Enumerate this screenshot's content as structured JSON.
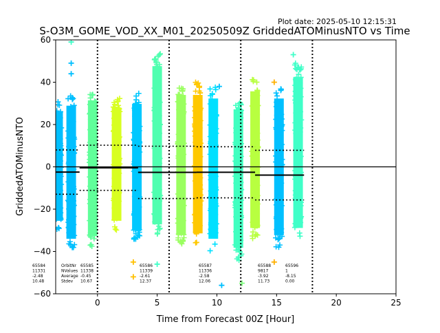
{
  "plot_date": "Plot date: 2025-05-10 12:15:31",
  "chart_data": {
    "type": "scatter",
    "title": "S-O3M_GOME_VOD_XX_M01_20250509Z GriddedATOMinusNTO vs Time",
    "xlabel": "Time from Forecast 00Z [Hour]",
    "ylabel": "GriddedATOMinusNTO",
    "xlim": [
      -3.5,
      25
    ],
    "ylim": [
      -60,
      60
    ],
    "xticks": [
      0,
      5,
      10,
      15,
      20,
      25
    ],
    "yticks": [
      -60,
      -40,
      -20,
      0,
      20,
      40,
      60
    ],
    "grid": false,
    "marker": "+",
    "orbit_boundaries": [
      0,
      6,
      12,
      18
    ],
    "zero_line": 0,
    "stat_labels": [
      "OrbitNr",
      "NValues",
      "Average",
      "Stdev"
    ],
    "orbits": [
      {
        "orbit": "65584",
        "nvalues": "11331",
        "average": "-2.48",
        "stdev": "10.48",
        "average_value": -2.48,
        "stdev_value": 10.48,
        "x_range": [
          -3.5,
          -1.5
        ]
      },
      {
        "orbit": "65585",
        "nvalues": "11338",
        "average": "-0.45",
        "stdev": "10.67",
        "average_value": -0.45,
        "stdev_value": 10.67,
        "x_range": [
          -1.5,
          3.4
        ]
      },
      {
        "orbit": "65586",
        "nvalues": "11339",
        "average": "-2.61",
        "stdev": "12.37",
        "average_value": -2.61,
        "stdev_value": 12.37,
        "x_range": [
          3.4,
          8.3
        ]
      },
      {
        "orbit": "65587",
        "nvalues": "11336",
        "average": "-2.58",
        "stdev": "12.06",
        "average_value": -2.58,
        "stdev_value": 12.06,
        "x_range": [
          8.3,
          13.2
        ]
      },
      {
        "orbit": "65588",
        "nvalues": "9817",
        "average": "-3.92",
        "stdev": "11.73",
        "average_value": -3.92,
        "stdev_value": 11.73,
        "x_range": [
          13.2,
          17.3
        ]
      },
      {
        "orbit": "65596",
        "nvalues": "1",
        "average": "-8.15",
        "stdev": "0.00",
        "average_value": -8.15,
        "stdev_value": 0.0,
        "x_range": []
      }
    ],
    "clusters": [
      {
        "x": -3.3,
        "ymin": -30,
        "ymax": 31,
        "color": "#00bfff"
      },
      {
        "x": -2.2,
        "ymin": -40,
        "ymax": 34,
        "color": "#00bfff"
      },
      {
        "x": -0.4,
        "ymin": -38,
        "ymax": 37,
        "color": "#60ff9a"
      },
      {
        "x": 1.6,
        "ymin": -30,
        "ymax": 33,
        "color": "#d8ff20"
      },
      {
        "x": 3.3,
        "ymin": -35,
        "ymax": 35,
        "color": "#00c8ff"
      },
      {
        "x": 5.0,
        "ymin": -32,
        "ymax": 56,
        "color": "#50ffb0"
      },
      {
        "x": 7.0,
        "ymin": -38,
        "ymax": 40,
        "color": "#9aff60"
      },
      {
        "x": 8.4,
        "ymin": -37,
        "ymax": 40,
        "color": "#ffc800"
      },
      {
        "x": 9.7,
        "ymin": -40,
        "ymax": 38,
        "color": "#00e0ff"
      },
      {
        "x": 11.8,
        "ymin": -45,
        "ymax": 32,
        "color": "#40ffc0"
      },
      {
        "x": 13.2,
        "ymin": -34,
        "ymax": 42,
        "color": "#b8ff40"
      },
      {
        "x": 15.2,
        "ymin": -38,
        "ymax": 38,
        "color": "#00c0ff"
      },
      {
        "x": 16.8,
        "ymin": -34,
        "ymax": 50,
        "color": "#40ffc8"
      }
    ],
    "outliers": [
      {
        "x": -2.2,
        "y": 49,
        "color": "#00bfff"
      },
      {
        "x": -2.2,
        "y": 44,
        "color": "#00bfff"
      },
      {
        "x": -2.2,
        "y": 59,
        "color": "#40ffc8"
      },
      {
        "x": 3.0,
        "y": -45,
        "color": "#ffc000"
      },
      {
        "x": 3.0,
        "y": -52,
        "color": "#ffc000"
      },
      {
        "x": 5.0,
        "y": -46,
        "color": "#40ffc8"
      },
      {
        "x": 10.2,
        "y": 38,
        "color": "#00bfff"
      },
      {
        "x": 10.4,
        "y": -56,
        "color": "#00bfff"
      },
      {
        "x": 12.1,
        "y": -55,
        "color": "#80ff80"
      },
      {
        "x": 14.8,
        "y": 40,
        "color": "#ffb000"
      },
      {
        "x": 14.8,
        "y": -45,
        "color": "#ffb000"
      },
      {
        "x": 16.4,
        "y": 53,
        "color": "#40ffc8"
      }
    ]
  }
}
